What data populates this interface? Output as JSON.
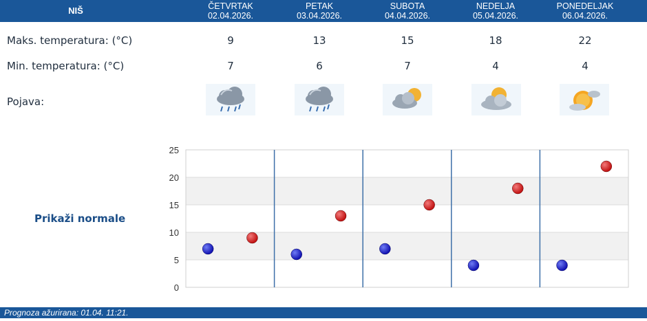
{
  "header": {
    "city": "NIŠ",
    "days": [
      {
        "name": "ČETVRTAK",
        "date": "02.04.2026."
      },
      {
        "name": "PETAK",
        "date": "03.04.2026."
      },
      {
        "name": "SUBOTA",
        "date": "04.04.2026."
      },
      {
        "name": "NEDELJA",
        "date": "05.04.2026."
      },
      {
        "name": "PONEDELJAK",
        "date": "06.04.2026."
      }
    ]
  },
  "rows": {
    "max_label": "Maks. temperatura: (°C)",
    "min_label": "Min. temperatura: (°C)",
    "phenomenon_label": "Pojava:",
    "max": [
      "9",
      "13",
      "15",
      "18",
      "22"
    ],
    "min": [
      "7",
      "6",
      "7",
      "4",
      "4"
    ],
    "icons": [
      "rain-cloud-icon",
      "rain-cloud-icon",
      "partly-cloudy-icon",
      "partly-cloudy-icon",
      "sunny-cloud-icon"
    ]
  },
  "normals_link": "Prikaži normale",
  "footer": {
    "text": "Prognoza ažurirana:  01.04. 11:21."
  },
  "colors": {
    "header_bg": "#1a5799",
    "min_dot": "#1010b0",
    "max_dot": "#c01010",
    "link": "#1a4d87"
  },
  "chart_data": {
    "type": "scatter",
    "categories": [
      "02.04.2026.",
      "03.04.2026.",
      "04.04.2026.",
      "05.04.2026.",
      "06.04.2026."
    ],
    "series": [
      {
        "name": "Min",
        "values": [
          7,
          6,
          7,
          4,
          4
        ]
      },
      {
        "name": "Max",
        "values": [
          9,
          13,
          15,
          18,
          22
        ]
      }
    ],
    "ylim": [
      0,
      25
    ],
    "yticks": [
      "0",
      "5",
      "10",
      "15",
      "20",
      "25"
    ],
    "grid": true
  }
}
